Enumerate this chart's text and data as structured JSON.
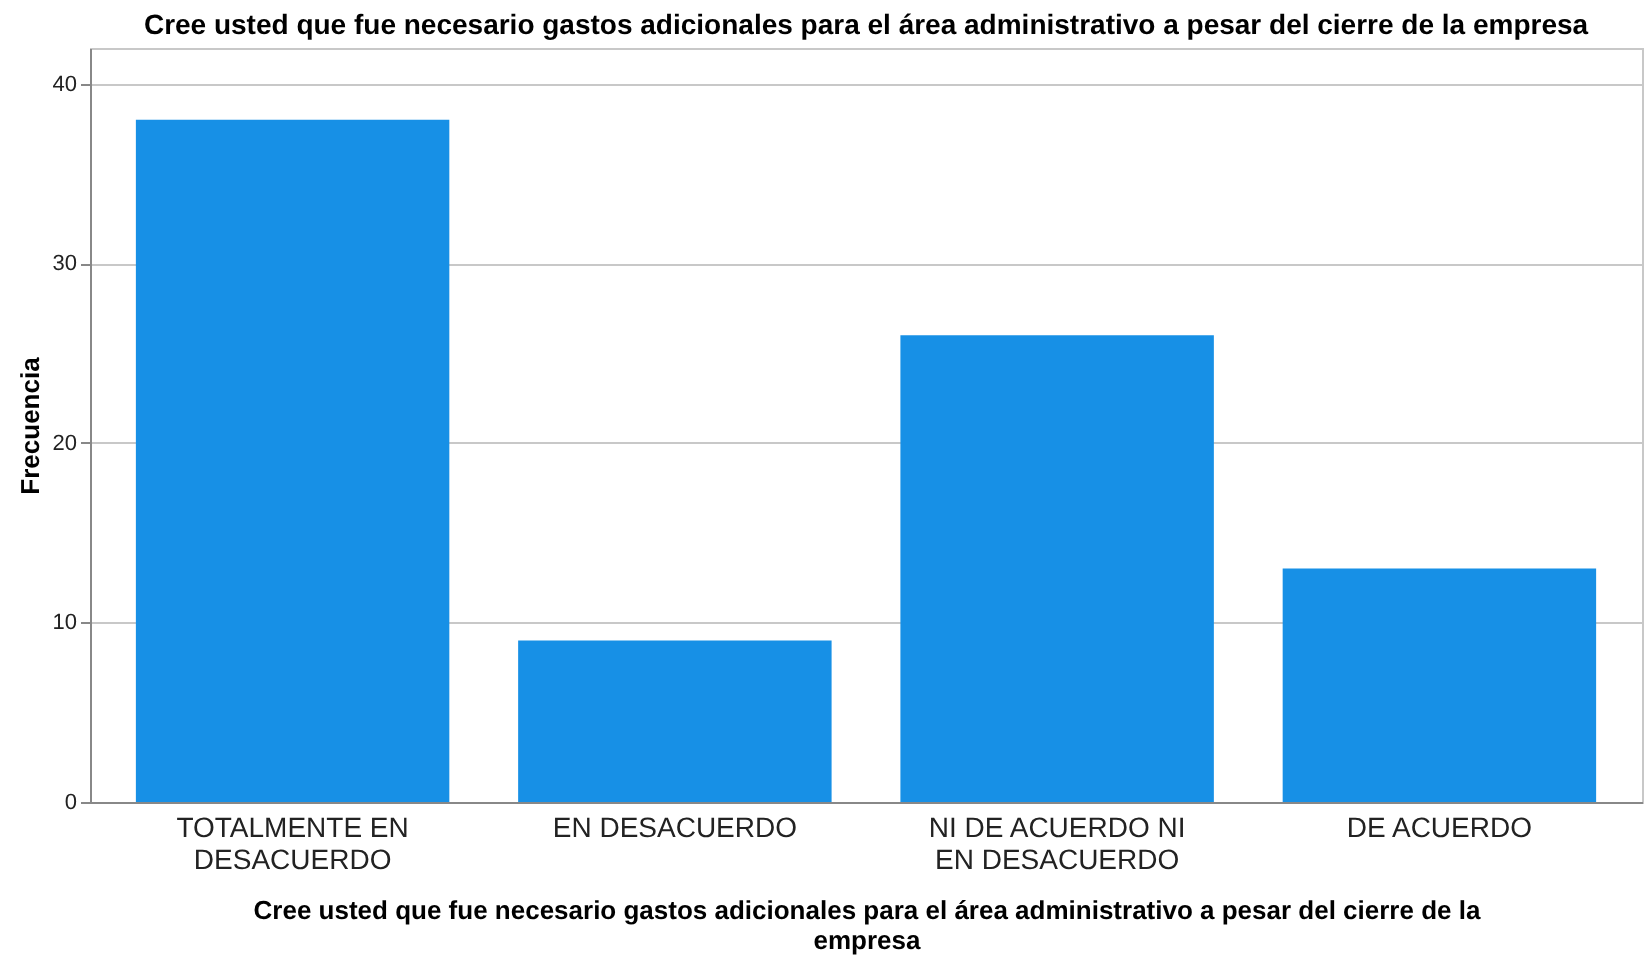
{
  "chart_data": {
    "type": "bar",
    "title": "Cree usted que fue necesario gastos adicionales para el área administrativo a pesar del cierre de la empresa",
    "xlabel": "Cree usted que fue necesario gastos adicionales para el área administrativo a pesar del cierre de la empresa",
    "ylabel": "Frecuencia",
    "categories": [
      "TOTALMENTE EN DESACUERDO",
      "EN DESACUERDO",
      "NI DE ACUERDO NI EN DESACUERDO",
      "DE ACUERDO"
    ],
    "values": [
      38,
      9,
      26,
      13
    ],
    "color": "#1790e6",
    "ylim": [
      0,
      42
    ],
    "yticks": [
      0,
      10,
      20,
      30,
      40
    ],
    "grid": "y"
  }
}
